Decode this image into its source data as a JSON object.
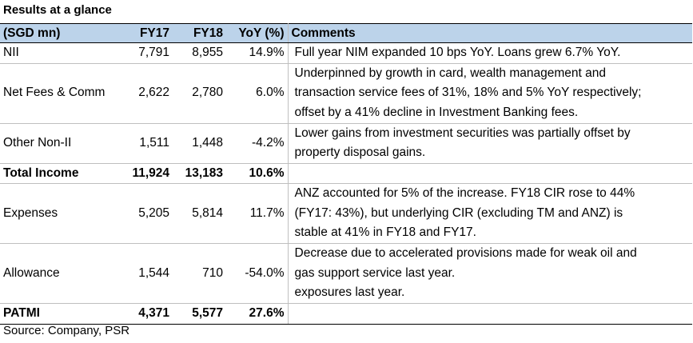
{
  "title": "Results at a glance",
  "headers": {
    "label": "(SGD mn)",
    "fy17": "FY17",
    "fy18": "FY18",
    "yoy": "YoY (%)",
    "comments": "Comments"
  },
  "rows": [
    {
      "label": "NII",
      "fy17": "7,791",
      "fy18": "8,955",
      "yoy": "14.9%",
      "comments": [
        "Full year NIM expanded 10 bps YoY. Loans grew 6.7% YoY."
      ]
    },
    {
      "label": "Net Fees & Comm",
      "fy17": "2,622",
      "fy18": "2,780",
      "yoy": "6.0%",
      "comments": [
        "Underpinned by growth in card, wealth management and",
        "transaction service fees of 31%, 18% and 5% YoY respectively;",
        "offset by a 41% decline in Investment Banking fees."
      ]
    },
    {
      "label": "Other Non-II",
      "fy17": "1,511",
      "fy18": "1,448",
      "yoy": "-4.2%",
      "comments": [
        "Lower gains from investment securities was partially offset by",
        "property disposal gains."
      ]
    },
    {
      "label": "Total Income",
      "fy17": "11,924",
      "fy18": "13,183",
      "yoy": "10.6%",
      "comments": [
        ""
      ]
    },
    {
      "label": "Expenses",
      "fy17": "5,205",
      "fy18": "5,814",
      "yoy": "11.7%",
      "comments": [
        "ANZ accounted for 5% of the increase. FY18 CIR rose to 44%",
        "(FY17: 43%), but underlying CIR (excluding TM and ANZ) is",
        "stable at 41% in FY18 and FY17."
      ]
    },
    {
      "label": "Allowance",
      "fy17": "1,544",
      "fy18": "710",
      "yoy": "-54.0%",
      "comments": [
        "Decrease due to accelerated provisions made for weak oil and",
        "gas support service last year.",
        "exposures last year."
      ]
    },
    {
      "label": "PATMI",
      "fy17": "4,371",
      "fy18": "5,577",
      "yoy": "27.6%",
      "comments": [
        ""
      ]
    }
  ],
  "source": "Source: Company, PSR"
}
